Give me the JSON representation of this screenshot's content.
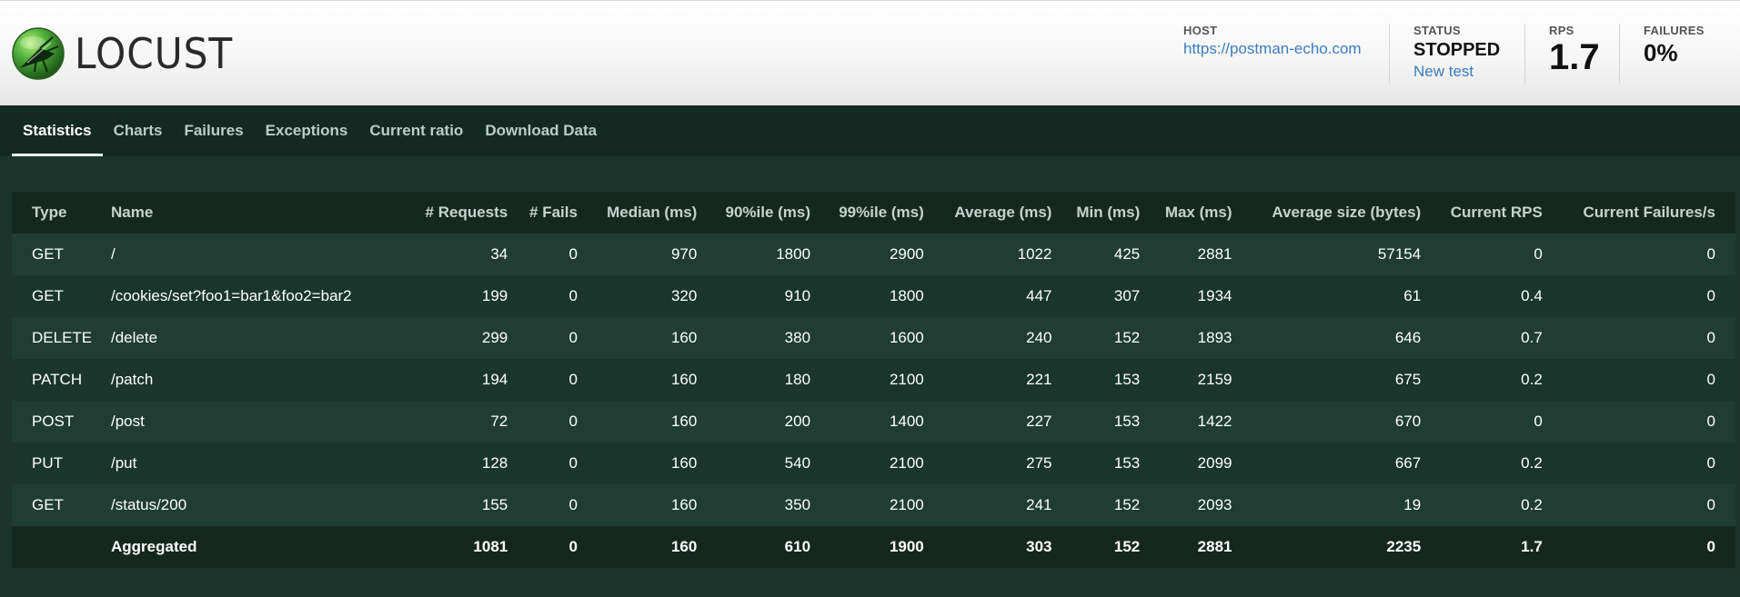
{
  "app": {
    "logo_text": "LOCUST"
  },
  "header": {
    "host_label": "HOST",
    "host_value": "https://postman-echo.com",
    "status_label": "STATUS",
    "status_value": "STOPPED",
    "new_test_label": "New test",
    "rps_label": "RPS",
    "rps_value": "1.7",
    "failures_label": "FAILURES",
    "failures_value": "0%"
  },
  "nav": {
    "tabs": [
      {
        "label": "Statistics",
        "active": true
      },
      {
        "label": "Charts",
        "active": false
      },
      {
        "label": "Failures",
        "active": false
      },
      {
        "label": "Exceptions",
        "active": false
      },
      {
        "label": "Current ratio",
        "active": false
      },
      {
        "label": "Download Data",
        "active": false
      }
    ]
  },
  "stats": {
    "columns": [
      "Type",
      "Name",
      "# Requests",
      "# Fails",
      "Median (ms)",
      "90%ile (ms)",
      "99%ile (ms)",
      "Average (ms)",
      "Min (ms)",
      "Max (ms)",
      "Average size (bytes)",
      "Current RPS",
      "Current Failures/s"
    ],
    "rows": [
      [
        "GET",
        "/",
        "34",
        "0",
        "970",
        "1800",
        "2900",
        "1022",
        "425",
        "2881",
        "57154",
        "0",
        "0"
      ],
      [
        "GET",
        "/cookies/set?foo1=bar1&foo2=bar2",
        "199",
        "0",
        "320",
        "910",
        "1800",
        "447",
        "307",
        "1934",
        "61",
        "0.4",
        "0"
      ],
      [
        "DELETE",
        "/delete",
        "299",
        "0",
        "160",
        "380",
        "1600",
        "240",
        "152",
        "1893",
        "646",
        "0.7",
        "0"
      ],
      [
        "PATCH",
        "/patch",
        "194",
        "0",
        "160",
        "180",
        "2100",
        "221",
        "153",
        "2159",
        "675",
        "0.2",
        "0"
      ],
      [
        "POST",
        "/post",
        "72",
        "0",
        "160",
        "200",
        "1400",
        "227",
        "153",
        "1422",
        "670",
        "0",
        "0"
      ],
      [
        "PUT",
        "/put",
        "128",
        "0",
        "160",
        "540",
        "2100",
        "275",
        "153",
        "2099",
        "667",
        "0.2",
        "0"
      ],
      [
        "GET",
        "/status/200",
        "155",
        "0",
        "160",
        "350",
        "2100",
        "241",
        "152",
        "2093",
        "19",
        "0.2",
        "0"
      ]
    ],
    "total": [
      "",
      "Aggregated",
      "1081",
      "0",
      "160",
      "610",
      "1900",
      "303",
      "152",
      "2881",
      "2235",
      "1.7",
      "0"
    ]
  },
  "colors": {
    "page_bg": "#1c352c",
    "nav_bg": "#132a22",
    "link": "#3d7cc0",
    "logo_green": "#4caf50"
  }
}
